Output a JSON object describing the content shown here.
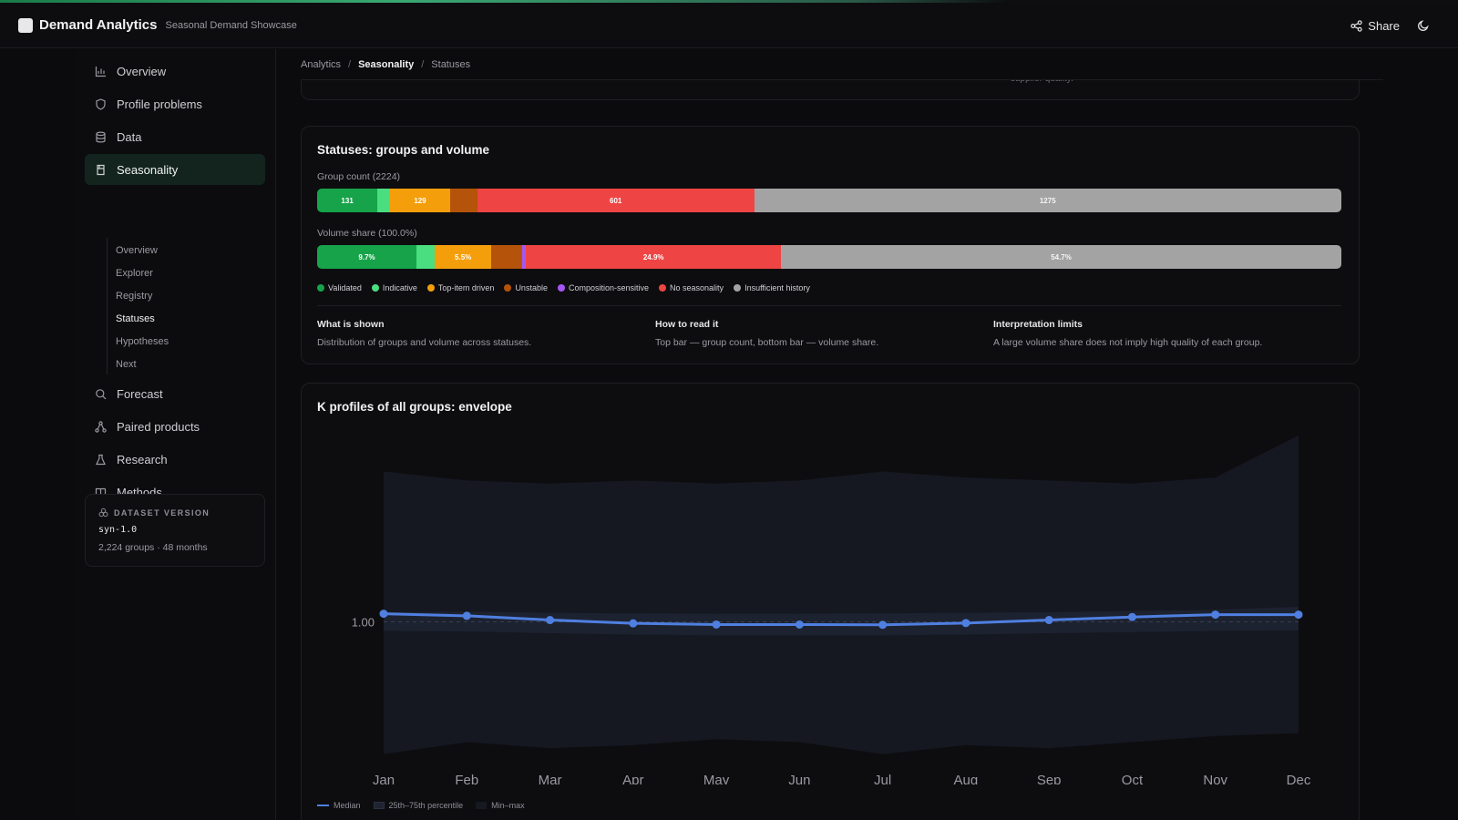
{
  "app": {
    "title": "Demand Analytics",
    "subtitle": "Seasonal Demand Showcase",
    "share_label": "Share",
    "loading_progress": 0.69
  },
  "sidebar": {
    "items": [
      {
        "label": "Overview",
        "icon": "bar-chart-icon"
      },
      {
        "label": "Profile problems",
        "icon": "shield-icon"
      },
      {
        "label": "Data",
        "icon": "database-icon"
      },
      {
        "label": "Seasonality",
        "icon": "bookmark-icon"
      },
      {
        "label": "Forecast",
        "icon": "search-icon"
      },
      {
        "label": "Paired products",
        "icon": "network-icon"
      },
      {
        "label": "Research",
        "icon": "flask-icon"
      },
      {
        "label": "Methods",
        "icon": "book-icon"
      }
    ],
    "subitems": [
      "Overview",
      "Explorer",
      "Registry",
      "Statuses",
      "Hypotheses",
      "Next"
    ],
    "active_item": "Seasonality",
    "active_subitem": "Statuses"
  },
  "dataset": {
    "heading": "DATASET VERSION",
    "version": "syn-1.0",
    "meta": "2,224 groups · 48 months"
  },
  "breadcrumb": [
    "Analytics",
    "Seasonality",
    "Statuses"
  ],
  "previous_card_fragment": "supplier quality.",
  "statuses": {
    "title": "Statuses: groups and volume",
    "count_label": "Group count (2224)",
    "volume_label": "Volume share (100.0%)",
    "categories": [
      {
        "name": "Validated",
        "color": "#16a34a",
        "count": 131,
        "count_label": "131",
        "share": 9.7,
        "share_label": "9.7%"
      },
      {
        "name": "Indicative",
        "color": "#4ade80",
        "count": 28,
        "count_label": "",
        "share": 1.8,
        "share_label": ""
      },
      {
        "name": "Top-item driven",
        "color": "#f59e0b",
        "count": 129,
        "count_label": "129",
        "share": 5.5,
        "share_label": "5.5%"
      },
      {
        "name": "Unstable",
        "color": "#b45309",
        "count": 60,
        "count_label": "",
        "share": 3.0,
        "share_label": ""
      },
      {
        "name": "Composition-sensitive",
        "color": "#a855f7",
        "count": 0,
        "count_label": "",
        "share": 0.4,
        "share_label": ""
      },
      {
        "name": "No seasonality",
        "color": "#ef4444",
        "count": 601,
        "count_label": "601",
        "share": 24.9,
        "share_label": "24.9%"
      },
      {
        "name": "Insufficient history",
        "color": "#a3a3a3",
        "count": 1275,
        "count_label": "1275",
        "share": 54.7,
        "share_label": "54.7%"
      }
    ],
    "info": [
      {
        "heading": "What is shown",
        "body": "Distribution of groups and volume across statuses."
      },
      {
        "heading": "How to read it",
        "body": "Top bar — group count, bottom bar — volume share."
      },
      {
        "heading": "Interpretation limits",
        "body": "A large volume share does not imply high quality of each group."
      }
    ]
  },
  "k_profile": {
    "title": "K profiles of all groups: envelope",
    "legend": [
      "Median",
      "25th–75th percentile",
      "Min–max"
    ]
  },
  "chart_data": {
    "type": "line",
    "title": "K profiles of all groups: envelope",
    "x": [
      "Jan",
      "Feb",
      "Mar",
      "Apr",
      "May",
      "Jun",
      "Jul",
      "Aug",
      "Sep",
      "Oct",
      "Nov",
      "Dec"
    ],
    "y_ticks": [
      1.0
    ],
    "y_tick_labels": [
      "1.00"
    ],
    "ylim": [
      0.55,
      1.55
    ],
    "series": [
      {
        "name": "Median",
        "color": "#4f7fe0",
        "values": [
          1.027,
          1.02,
          1.006,
          0.995,
          0.991,
          0.991,
          0.99,
          0.996,
          1.006,
          1.016,
          1.024,
          1.024
        ]
      },
      {
        "name": "25th–75th percentile",
        "lower": [
          0.97,
          0.968,
          0.962,
          0.958,
          0.955,
          0.955,
          0.955,
          0.958,
          0.962,
          0.966,
          0.97,
          0.972
        ],
        "upper": [
          1.032,
          1.034,
          1.03,
          1.028,
          1.027,
          1.027,
          1.028,
          1.03,
          1.032,
          1.036,
          1.04,
          1.05
        ]
      },
      {
        "name": "Min–max",
        "lower": [
          0.56,
          0.6,
          0.58,
          0.59,
          0.61,
          0.6,
          0.56,
          0.59,
          0.58,
          0.6,
          0.62,
          0.63
        ],
        "upper": [
          1.5,
          1.47,
          1.46,
          1.47,
          1.46,
          1.47,
          1.5,
          1.48,
          1.47,
          1.46,
          1.48,
          1.62
        ]
      }
    ],
    "grid": false,
    "legend_position": "bottom-left"
  }
}
